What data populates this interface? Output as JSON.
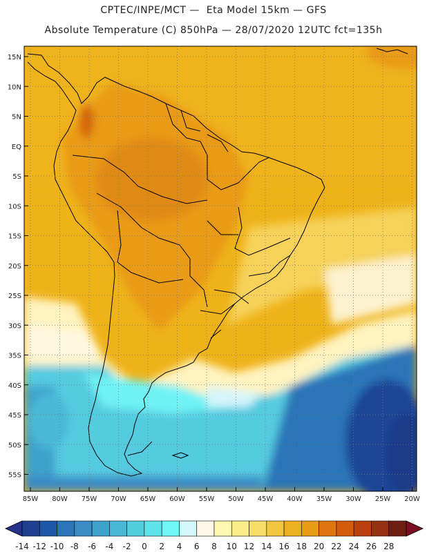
{
  "title_line1": "CPTEC/INPE/MCT —  Eta Model 15km — GFS",
  "title_line2": "Absolute Temperature (C) 850hPa — 28/07/2020 12UTC fct=135h",
  "lat_labels": [
    "15N",
    "10N",
    "5N",
    "EQ",
    "5S",
    "10S",
    "15S",
    "20S",
    "25S",
    "30S",
    "35S",
    "40S",
    "45S",
    "50S",
    "55S"
  ],
  "lon_labels": [
    "85W",
    "80W",
    "75W",
    "70W",
    "65W",
    "60W",
    "55W",
    "50W",
    "45W",
    "40W",
    "35W",
    "30W",
    "25W",
    "20W"
  ],
  "colorbar": {
    "ticks": [
      "-14",
      "-12",
      "-10",
      "-8",
      "-6",
      "-4",
      "-2",
      "0",
      "2",
      "4",
      "6",
      "8",
      "10",
      "12",
      "14",
      "16",
      "18",
      "20",
      "22",
      "24",
      "26",
      "28"
    ],
    "colors": [
      "#1f3f8f",
      "#1f57a8",
      "#2a74b8",
      "#3a8bc6",
      "#3ea2cc",
      "#48b8d6",
      "#52cde0",
      "#5ee3ea",
      "#6ff7f7",
      "#d4f7fc",
      "#fff8e6",
      "#fff9b0",
      "#fbed8a",
      "#f6dd6a",
      "#f1c640",
      "#eeb01e",
      "#e99a16",
      "#e07510",
      "#d45a0c",
      "#b9400c",
      "#963010",
      "#6e1f12"
    ],
    "under_color": "#26318a",
    "over_color": "#7a0f22"
  },
  "chart_data": {
    "type": "heatmap",
    "variable": "Absolute Temperature",
    "units": "C",
    "level": "850hPa",
    "lon_range": [
      "85W",
      "20W"
    ],
    "lat_range": [
      "57S",
      "17N"
    ],
    "value_range": [
      -14,
      28
    ]
  }
}
